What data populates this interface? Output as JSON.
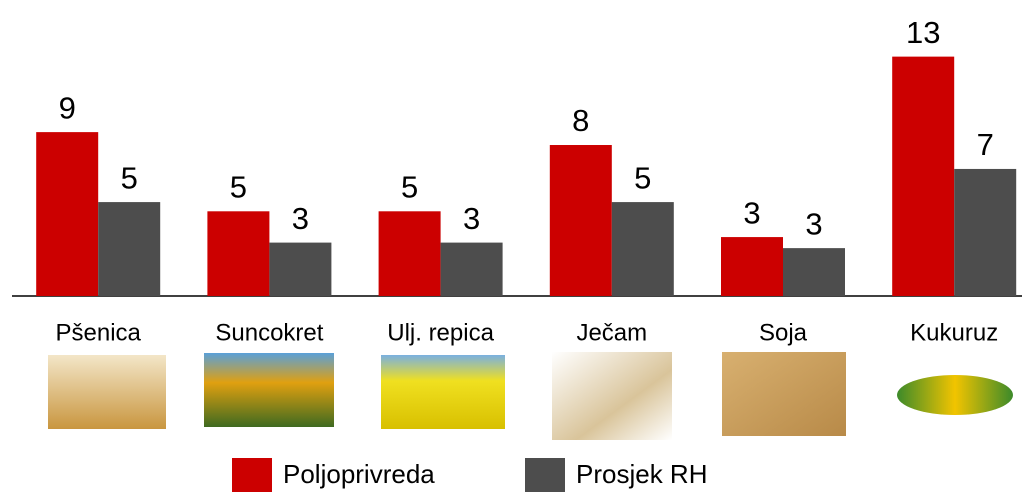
{
  "chart_data": {
    "type": "bar",
    "categories": [
      "Pšenica",
      "Suncokret",
      "Ulj. repica",
      "Ječam",
      "Soja",
      "Kukuruz"
    ],
    "series": [
      {
        "name": "Poljoprivreda",
        "color": "#cc0000",
        "values": [
          8.9,
          4.6,
          4.6,
          8.2,
          3.2,
          13.0
        ],
        "value_labels": [
          "9",
          "5",
          "5",
          "8",
          "3",
          "13"
        ]
      },
      {
        "name": "Prosjek RH",
        "color": "#4d4d4d",
        "values": [
          5.1,
          2.9,
          2.9,
          5.1,
          2.6,
          6.9
        ],
        "value_labels": [
          "5",
          "3",
          "3",
          "5",
          "3",
          "7"
        ]
      }
    ],
    "ylim": [
      0,
      14.5
    ]
  }
}
